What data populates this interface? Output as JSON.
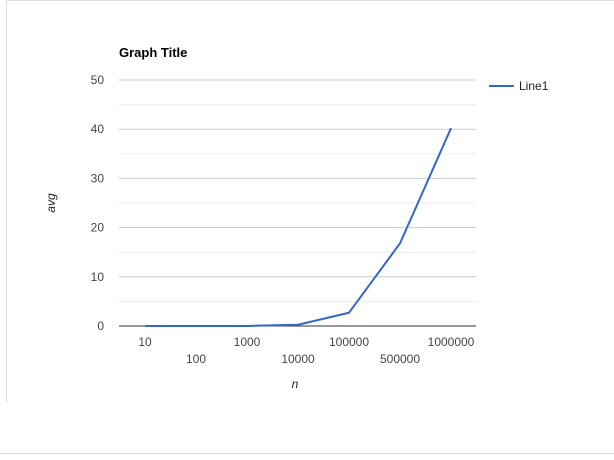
{
  "chart_data": {
    "type": "line",
    "title": "Graph Title",
    "xlabel": "n",
    "ylabel": "avg",
    "categories": [
      "10",
      "100",
      "1000",
      "10000",
      "100000",
      "500000",
      "1000000"
    ],
    "series": [
      {
        "name": "Line1",
        "values": [
          0.0,
          0.0,
          0.01,
          0.25,
          2.7,
          16.8,
          40.2
        ]
      }
    ],
    "yticks": [
      0,
      10,
      20,
      30,
      40,
      50
    ],
    "ylim": [
      0,
      50
    ],
    "grid": true,
    "legend": "right",
    "colors": {
      "series": "#3366cc",
      "grid": "#cccccc",
      "axis": "#333333"
    }
  }
}
